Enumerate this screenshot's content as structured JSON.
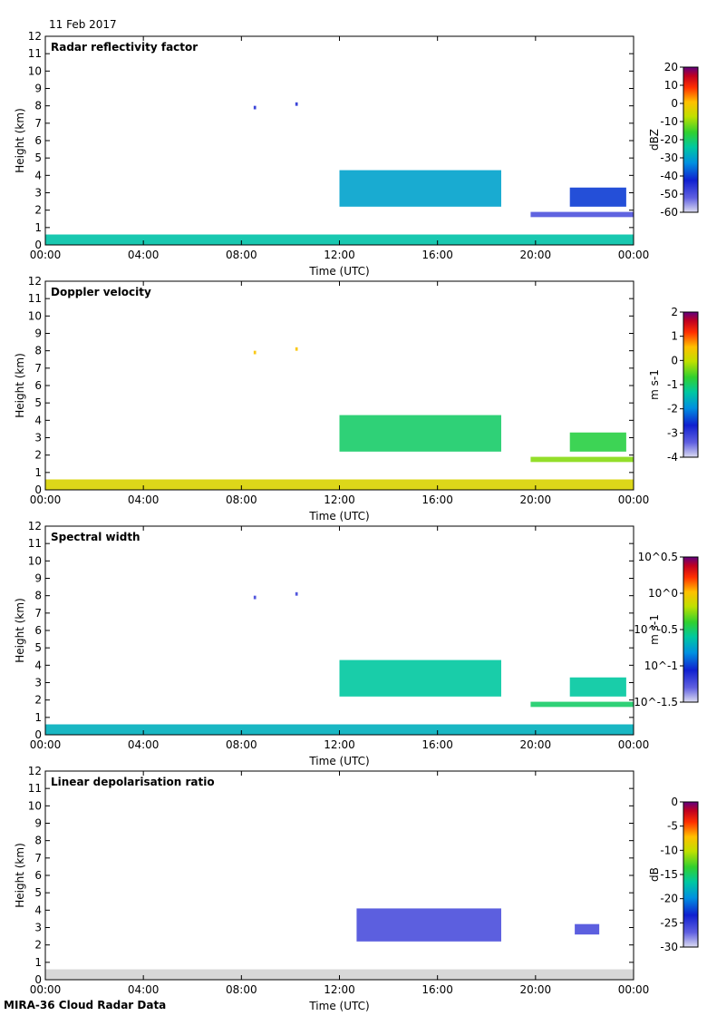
{
  "date": "11 Feb 2017",
  "footer": "MIRA-36 Cloud Radar Data",
  "chart_data": [
    {
      "type": "heatmap",
      "title": "Radar reflectivity factor",
      "xlabel": "Time (UTC)",
      "ylabel": "Height (km)",
      "x_ticks": [
        "00:00",
        "04:00",
        "08:00",
        "12:00",
        "16:00",
        "20:00",
        "00:00"
      ],
      "y_ticks": [
        0,
        1,
        2,
        3,
        4,
        5,
        6,
        7,
        8,
        9,
        10,
        11,
        12
      ],
      "ylim": [
        0,
        12
      ],
      "xlim_hours": [
        0,
        24
      ],
      "colorbar": {
        "unit": "dBZ",
        "ticks": [
          "20",
          "10",
          "0",
          "-10",
          "-20",
          "-30",
          "-40",
          "-50",
          "-60"
        ],
        "range": [
          -60,
          20
        ]
      },
      "features": [
        {
          "name": "boundary layer",
          "t_start": 0.0,
          "t_end": 24.0,
          "h_bottom": 0.0,
          "h_top": 0.6,
          "value": -25
        },
        {
          "name": "mid-level cloud",
          "t_start": 12.0,
          "t_end": 18.6,
          "h_bottom": 2.2,
          "h_top": 4.3,
          "value": -30
        },
        {
          "name": "late cloud",
          "t_start": 21.4,
          "t_end": 23.7,
          "h_bottom": 2.2,
          "h_top": 3.3,
          "value": -40
        },
        {
          "name": "thin layer",
          "t_start": 19.8,
          "t_end": 24.0,
          "h_bottom": 1.6,
          "h_top": 1.9,
          "value": -50
        },
        {
          "name": "speck",
          "t_start": 8.5,
          "t_end": 8.6,
          "h_bottom": 7.8,
          "h_top": 8.0,
          "value": -45
        },
        {
          "name": "speck",
          "t_start": 10.2,
          "t_end": 10.3,
          "h_bottom": 8.0,
          "h_top": 8.2,
          "value": -45
        }
      ]
    },
    {
      "type": "heatmap",
      "title": "Doppler velocity",
      "xlabel": "Time (UTC)",
      "ylabel": "Height (km)",
      "x_ticks": [
        "00:00",
        "04:00",
        "08:00",
        "12:00",
        "16:00",
        "20:00",
        "00:00"
      ],
      "y_ticks": [
        0,
        1,
        2,
        3,
        4,
        5,
        6,
        7,
        8,
        9,
        10,
        11,
        12
      ],
      "ylim": [
        0,
        12
      ],
      "xlim_hours": [
        0,
        24
      ],
      "colorbar": {
        "unit": "m s-1",
        "ticks": [
          "2",
          "1",
          "0",
          "-1",
          "-2",
          "-3",
          "-4"
        ],
        "range": [
          -4,
          2
        ]
      },
      "features": [
        {
          "name": "boundary layer",
          "t_start": 0.0,
          "t_end": 24.0,
          "h_bottom": 0.0,
          "h_top": 0.6,
          "value": 0.2
        },
        {
          "name": "mid-level cloud",
          "t_start": 12.0,
          "t_end": 18.6,
          "h_bottom": 2.2,
          "h_top": 4.3,
          "value": -1.0
        },
        {
          "name": "late cloud",
          "t_start": 21.4,
          "t_end": 23.7,
          "h_bottom": 2.2,
          "h_top": 3.3,
          "value": -0.8
        },
        {
          "name": "thin layer",
          "t_start": 19.8,
          "t_end": 24.0,
          "h_bottom": 1.6,
          "h_top": 1.9,
          "value": -0.3
        },
        {
          "name": "speck",
          "t_start": 8.5,
          "t_end": 8.6,
          "h_bottom": 7.8,
          "h_top": 8.0,
          "value": 0.5
        },
        {
          "name": "speck",
          "t_start": 10.2,
          "t_end": 10.3,
          "h_bottom": 8.0,
          "h_top": 8.2,
          "value": 0.5
        }
      ]
    },
    {
      "type": "heatmap",
      "title": "Spectral width",
      "xlabel": "Time (UTC)",
      "ylabel": "Height (km)",
      "x_ticks": [
        "00:00",
        "04:00",
        "08:00",
        "12:00",
        "16:00",
        "20:00",
        "00:00"
      ],
      "y_ticks": [
        0,
        1,
        2,
        3,
        4,
        5,
        6,
        7,
        8,
        9,
        10,
        11,
        12
      ],
      "ylim": [
        0,
        12
      ],
      "xlim_hours": [
        0,
        24
      ],
      "colorbar": {
        "unit": "m s-1",
        "ticks": [
          "10^0.5",
          "10^0",
          "10^-0.5",
          "10^-1",
          "10^-1.5"
        ],
        "range_log10": [
          -1.5,
          0.5
        ]
      },
      "features": [
        {
          "name": "boundary layer",
          "t_start": 0.0,
          "t_end": 24.0,
          "h_bottom": 0.0,
          "h_top": 0.6,
          "value": -0.7
        },
        {
          "name": "mid-level cloud",
          "t_start": 12.0,
          "t_end": 18.6,
          "h_bottom": 2.2,
          "h_top": 4.3,
          "value": -0.6
        },
        {
          "name": "late cloud",
          "t_start": 21.4,
          "t_end": 23.7,
          "h_bottom": 2.2,
          "h_top": 3.3,
          "value": -0.6
        },
        {
          "name": "thin layer",
          "t_start": 19.8,
          "t_end": 24.0,
          "h_bottom": 1.6,
          "h_top": 1.9,
          "value": -0.5
        },
        {
          "name": "speck",
          "t_start": 8.5,
          "t_end": 8.6,
          "h_bottom": 7.8,
          "h_top": 8.0,
          "value": -1.2
        },
        {
          "name": "speck",
          "t_start": 10.2,
          "t_end": 10.3,
          "h_bottom": 8.0,
          "h_top": 8.2,
          "value": -1.2
        }
      ]
    },
    {
      "type": "heatmap",
      "title": "Linear depolarisation ratio",
      "xlabel": "Time (UTC)",
      "ylabel": "Height (km)",
      "x_ticks": [
        "00:00",
        "04:00",
        "08:00",
        "12:00",
        "16:00",
        "20:00",
        "00:00"
      ],
      "y_ticks": [
        0,
        1,
        2,
        3,
        4,
        5,
        6,
        7,
        8,
        9,
        10,
        11,
        12
      ],
      "ylim": [
        0,
        12
      ],
      "xlim_hours": [
        0,
        24
      ],
      "colorbar": {
        "unit": "dB",
        "ticks": [
          "0",
          "-5",
          "-10",
          "-15",
          "-20",
          "-25",
          "-30"
        ],
        "range": [
          -30,
          0
        ]
      },
      "features": [
        {
          "name": "boundary layer (no LDR)",
          "t_start": 0.0,
          "t_end": 24.0,
          "h_bottom": 0.0,
          "h_top": 0.6,
          "value": null
        },
        {
          "name": "mid-level cloud",
          "t_start": 12.7,
          "t_end": 18.6,
          "h_bottom": 2.2,
          "h_top": 4.1,
          "value": -26
        },
        {
          "name": "late cloud",
          "t_start": 21.6,
          "t_end": 22.6,
          "h_bottom": 2.6,
          "h_top": 3.2,
          "value": -26
        }
      ]
    }
  ]
}
